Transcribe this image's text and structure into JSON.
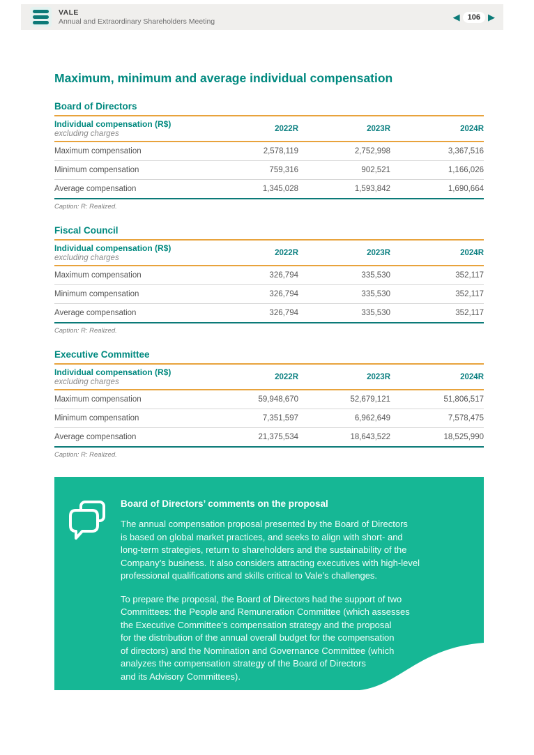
{
  "header": {
    "brand": "VALE",
    "subtitle": "Annual and Extraordinary Shareholders Meeting",
    "page_number": "106",
    "prev_icon": "◀",
    "next_icon": "▶",
    "menu_icon": "hamburger-icon"
  },
  "page_title": "Maximum, minimum and average individual compensation",
  "tables": [
    {
      "section": "Board of Directors",
      "header_label": "Individual compensation (R$)",
      "header_sublabel": "excluding charges",
      "columns": [
        "2022R",
        "2023R",
        "2024R"
      ],
      "rows": [
        {
          "label": "Maximum compensation",
          "values": [
            "2,578,119",
            "2,752,998",
            "3,367,516"
          ]
        },
        {
          "label": "Minimum compensation",
          "values": [
            "759,316",
            "902,521",
            "1,166,026"
          ]
        },
        {
          "label": "Average compensation",
          "values": [
            "1,345,028",
            "1,593,842",
            "1,690,664"
          ]
        }
      ],
      "caption": "Caption: R: Realized."
    },
    {
      "section": "Fiscal Council",
      "header_label": "Individual compensation (R$)",
      "header_sublabel": "excluding charges",
      "columns": [
        "2022R",
        "2023R",
        "2024R"
      ],
      "rows": [
        {
          "label": "Maximum compensation",
          "values": [
            "326,794",
            "335,530",
            "352,117"
          ]
        },
        {
          "label": "Minimum compensation",
          "values": [
            "326,794",
            "335,530",
            "352,117"
          ]
        },
        {
          "label": "Average compensation",
          "values": [
            "326,794",
            "335,530",
            "352,117"
          ]
        }
      ],
      "caption": "Caption: R: Realized."
    },
    {
      "section": "Executive Committee",
      "header_label": "Individual compensation (R$)",
      "header_sublabel": "excluding charges",
      "columns": [
        "2022R",
        "2023R",
        "2024R"
      ],
      "rows": [
        {
          "label": "Maximum compensation",
          "values": [
            "59,948,670",
            "52,679,121",
            "51,806,517"
          ]
        },
        {
          "label": "Minimum compensation",
          "values": [
            "7,351,597",
            "6,962,649",
            "7,578,475"
          ]
        },
        {
          "label": "Average compensation",
          "values": [
            "21,375,534",
            "18,643,522",
            "18,525,990"
          ]
        }
      ],
      "caption": "Caption: R: Realized."
    }
  ],
  "comments_box": {
    "icon": "speech-bubbles-icon",
    "title": "Board of Directors’ comments on the proposal",
    "paragraphs": [
      "The annual compensation proposal presented by the Board of Directors\nis based on global market practices, and seeks to align with short- and\nlong-term strategies, return to shareholders and the sustainability of the\nCompany’s business. It also considers attracting executives with high-level\nprofessional qualifications and skills critical to Vale’s challenges.",
      "To prepare the proposal, the Board of Directors had the support of two\nCommittees: the People and Remuneration Committee (which assesses\nthe Executive Committee’s compensation strategy and the proposal\nfor the distribution of the annual overall budget for the compensation\nof directors) and the Nomination and Governance Committee (which\nanalyzes the compensation strategy of the Board of Directors\nand its Advisory Committees)."
    ]
  },
  "colors": {
    "accent_teal": "#0b7a78",
    "heading_teal": "#00897f",
    "gold": "#e8a33c",
    "box_teal": "#16b795",
    "topbar_gray": "#f0efed"
  }
}
